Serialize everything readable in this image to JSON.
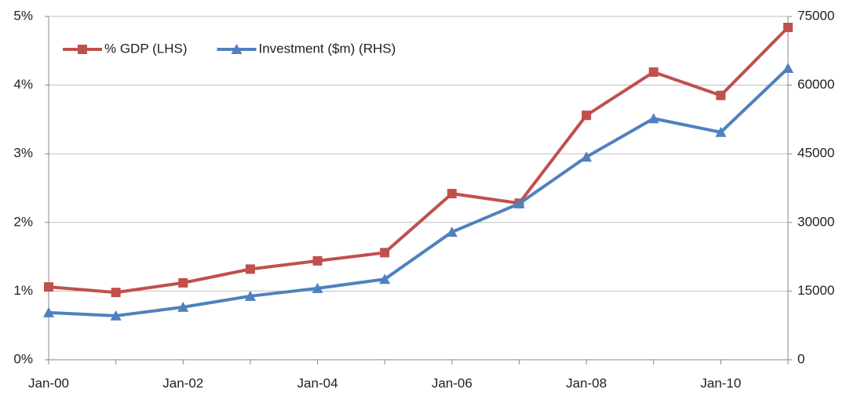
{
  "chart_data": {
    "type": "line",
    "categories": [
      "Jan-00",
      null,
      "Jan-02",
      null,
      "Jan-04",
      null,
      "Jan-06",
      null,
      "Jan-08",
      null,
      "Jan-10",
      null
    ],
    "series": [
      {
        "name": "% GDP (LHS)",
        "color": "#c0504d",
        "marker": "square",
        "axis": "y",
        "values": [
          1.06,
          0.98,
          1.12,
          1.32,
          1.44,
          1.56,
          2.42,
          2.28,
          3.56,
          4.19,
          3.85,
          4.84
        ]
      },
      {
        "name": "Investment ($m) (RHS)",
        "color": "#4f81bd",
        "marker": "triangle",
        "axis": "y2",
        "values": [
          10300,
          9600,
          11500,
          13900,
          15600,
          17600,
          27900,
          34100,
          44300,
          52700,
          49700,
          63700
        ]
      }
    ],
    "ylim": [
      0,
      5
    ],
    "yticks": [
      {
        "value": 0,
        "label": "0%"
      },
      {
        "value": 1,
        "label": "1%"
      },
      {
        "value": 2,
        "label": "2%"
      },
      {
        "value": 3,
        "label": "3%"
      },
      {
        "value": 4,
        "label": "4%"
      },
      {
        "value": 5,
        "label": "5%"
      }
    ],
    "y2lim": [
      0,
      75000
    ],
    "y2ticks": [
      0,
      15000,
      30000,
      45000,
      60000,
      75000
    ],
    "grid": true,
    "legend": "top-left"
  }
}
